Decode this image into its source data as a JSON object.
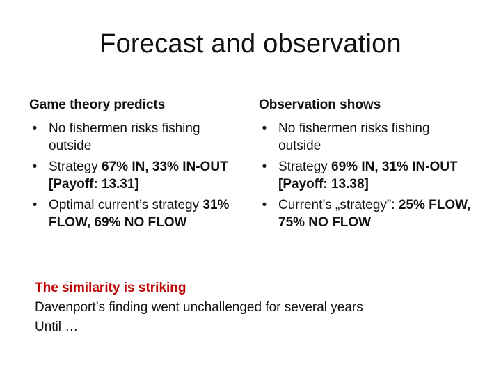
{
  "title": "Forecast and observation",
  "left": {
    "heading": "Game theory predicts",
    "bullets": [
      {
        "parts": [
          "No fishermen risks fishing outside"
        ]
      },
      {
        "parts": [
          "Strategy ",
          "67% IN, 33% IN-OUT  [Payoff: 13.31]"
        ]
      },
      {
        "parts": [
          "Optimal current’s strategy ",
          "31% FLOW,  69% NO FLOW"
        ]
      }
    ]
  },
  "right": {
    "heading": "Observation shows",
    "bullets": [
      {
        "parts": [
          "No fishermen risks fishing outside"
        ]
      },
      {
        "parts": [
          "Strategy ",
          "69% IN, 31% IN-OUT [Payoff: 13.38]"
        ]
      },
      {
        "parts": [
          "Current’s „strategy”: ",
          "25% FLOW, 75% NO FLOW"
        ]
      }
    ]
  },
  "bottom": {
    "highlight": "The similarity is striking",
    "line2": "Davenport’s finding went unchallenged for several years",
    "line3": "Until …"
  },
  "colors": {
    "highlight": "#c00000",
    "text": "#111111"
  },
  "bullet_symbol": "•"
}
